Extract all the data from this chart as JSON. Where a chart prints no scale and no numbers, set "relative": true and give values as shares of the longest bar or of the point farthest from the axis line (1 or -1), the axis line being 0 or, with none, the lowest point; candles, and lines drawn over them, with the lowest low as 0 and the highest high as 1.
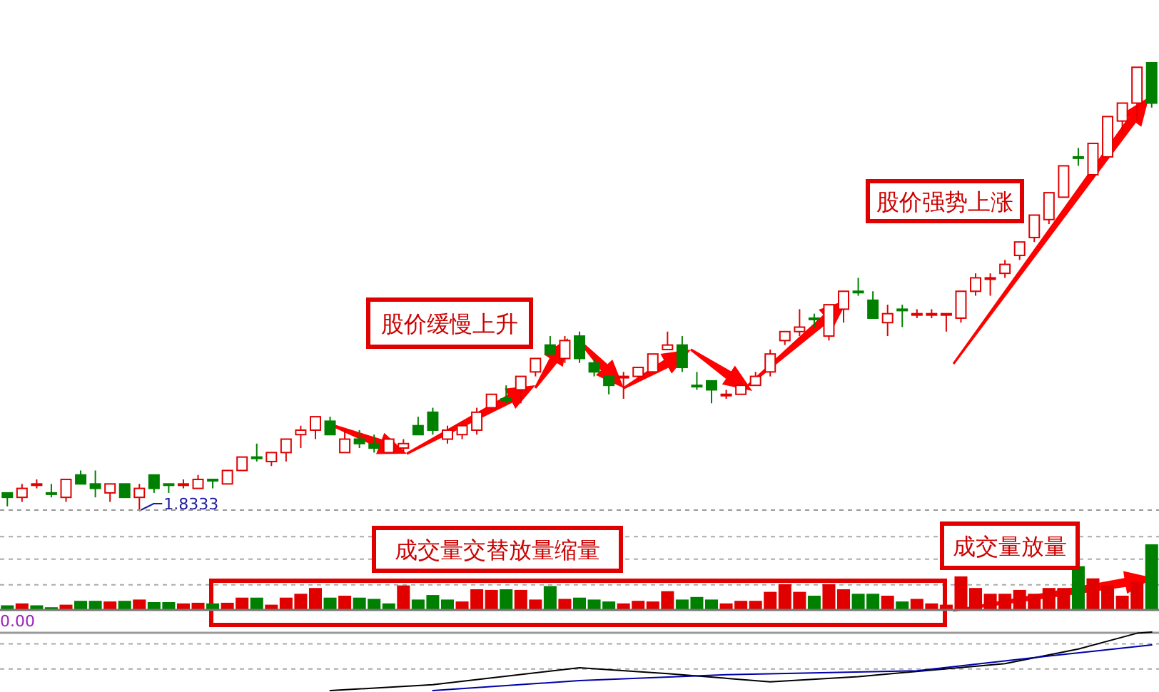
{
  "chart_data": [
    {
      "type": "candlestick",
      "relative": true,
      "categories": [
        null,
        null,
        null,
        null,
        null,
        null,
        null,
        null,
        null,
        null,
        null,
        null,
        null,
        null,
        null,
        null,
        null,
        null,
        null,
        null,
        null,
        null,
        null,
        null,
        null,
        null,
        null,
        null,
        null,
        null,
        null,
        null,
        null,
        null,
        null,
        null,
        null,
        null,
        null,
        null,
        null,
        null,
        null,
        null,
        null,
        null,
        null,
        null,
        null,
        null,
        null,
        null,
        null,
        null,
        null,
        null,
        null,
        null,
        null,
        null,
        null,
        null,
        null,
        null,
        null,
        null,
        null,
        null,
        null,
        null,
        null,
        null,
        null,
        null,
        null,
        null,
        null,
        null,
        null
      ],
      "ohlc": [
        [
          0.04,
          0.04,
          0.01,
          0.03
        ],
        [
          0.03,
          0.06,
          0.02,
          0.05
        ],
        [
          0.06,
          0.07,
          0.05,
          0.06
        ],
        [
          0.04,
          0.06,
          0.03,
          0.037
        ],
        [
          0.03,
          0.07,
          0.02,
          0.07
        ],
        [
          0.08,
          0.09,
          0.06,
          0.06
        ],
        [
          0.06,
          0.09,
          0.03,
          0.05
        ],
        [
          0.04,
          0.06,
          0.02,
          0.06
        ],
        [
          0.06,
          0.06,
          0.03,
          0.03
        ],
        [
          0.03,
          0.06,
          0,
          0.05
        ],
        [
          0.08,
          0.08,
          0.04,
          0.05
        ],
        [
          0.06,
          0.06,
          0.04,
          0.057
        ],
        [
          0.06,
          0.07,
          0.05,
          0.06
        ],
        [
          0.05,
          0.08,
          0.05,
          0.07
        ],
        [
          0.07,
          0.07,
          0.05,
          0.067
        ],
        [
          0.06,
          0.09,
          0.06,
          0.09
        ],
        [
          0.09,
          0.12,
          0.09,
          0.12
        ],
        [
          0.12,
          0.15,
          0.11,
          0.117
        ],
        [
          0.11,
          0.13,
          0.1,
          0.13
        ],
        [
          0.13,
          0.16,
          0.11,
          0.16
        ],
        [
          0.17,
          0.19,
          0.14,
          0.18
        ],
        [
          0.18,
          0.21,
          0.16,
          0.21
        ],
        [
          0.2,
          0.21,
          0.17,
          0.17
        ],
        [
          0.13,
          0.18,
          0.13,
          0.16
        ],
        [
          0.16,
          0.18,
          0.14,
          0.15
        ],
        [
          0.15,
          0.17,
          0.13,
          0.14
        ],
        [
          0.13,
          0.16,
          0.13,
          0.16
        ],
        [
          0.14,
          0.16,
          0.13,
          0.15
        ],
        [
          0.19,
          0.21,
          0.17,
          0.17
        ],
        [
          0.22,
          0.23,
          0.17,
          0.18
        ],
        [
          0.16,
          0.19,
          0.15,
          0.18
        ],
        [
          0.17,
          0.2,
          0.16,
          0.19
        ],
        [
          0.18,
          0.23,
          0.17,
          0.22
        ],
        [
          0.23,
          0.26,
          0.22,
          0.26
        ],
        [
          0.25,
          0.28,
          0.24,
          0.247
        ],
        [
          0.27,
          0.3,
          0.24,
          0.3
        ],
        [
          0.31,
          0.34,
          0.3,
          0.34
        ],
        [
          0.37,
          0.39,
          0.35,
          0.35
        ],
        [
          0.34,
          0.39,
          0.33,
          0.38
        ],
        [
          0.39,
          0.4,
          0.33,
          0.34
        ],
        [
          0.33,
          0.34,
          0.3,
          0.31
        ],
        [
          0.3,
          0.3,
          0.26,
          0.28
        ],
        [
          0.3,
          0.31,
          0.25,
          0.3
        ],
        [
          0.3,
          0.32,
          0.29,
          0.32
        ],
        [
          0.31,
          0.35,
          0.31,
          0.35
        ],
        [
          0.36,
          0.4,
          0.36,
          0.37
        ],
        [
          0.37,
          0.39,
          0.31,
          0.32
        ],
        [
          0.28,
          0.31,
          0.27,
          0.277
        ],
        [
          0.29,
          0.29,
          0.24,
          0.27
        ],
        [
          0.26,
          0.27,
          0.25,
          0.26
        ],
        [
          0.26,
          0.29,
          0.26,
          0.28
        ],
        [
          0.28,
          0.31,
          0.28,
          0.3
        ],
        [
          0.31,
          0.36,
          0.3,
          0.35
        ],
        [
          0.38,
          0.4,
          0.37,
          0.4
        ],
        [
          0.4,
          0.45,
          0.39,
          0.41
        ],
        [
          0.43,
          0.44,
          0.41,
          0.427
        ],
        [
          0.39,
          0.46,
          0.38,
          0.46
        ],
        [
          0.45,
          0.49,
          0.42,
          0.49
        ],
        [
          0.49,
          0.52,
          0.48,
          0.487
        ],
        [
          0.47,
          0.49,
          0.43,
          0.43
        ],
        [
          0.42,
          0.46,
          0.39,
          0.44
        ],
        [
          0.45,
          0.46,
          0.41,
          0.447
        ],
        [
          0.44,
          0.45,
          0.43,
          0.44
        ],
        [
          0.44,
          0.45,
          0.43,
          0.44
        ],
        [
          0.44,
          0.44,
          0.4,
          0.44
        ],
        [
          0.43,
          0.49,
          0.42,
          0.49
        ],
        [
          0.49,
          0.53,
          0.48,
          0.52
        ],
        [
          0.52,
          0.53,
          0.48,
          0.52
        ],
        [
          0.53,
          0.56,
          0.52,
          0.55
        ],
        [
          0.57,
          0.6,
          0.56,
          0.6
        ],
        [
          0.61,
          0.66,
          0.6,
          0.66
        ],
        [
          0.65,
          0.71,
          0.64,
          0.71
        ],
        [
          0.7,
          0.77,
          0.7,
          0.77
        ],
        [
          0.79,
          0.81,
          0.77,
          0.787
        ],
        [
          0.75,
          0.82,
          0.74,
          0.82
        ],
        [
          0.79,
          0.88,
          0.79,
          0.88
        ],
        [
          0.87,
          0.91,
          0.84,
          0.91
        ],
        [
          0.91,
          0.99,
          0.87,
          0.99
        ],
        [
          1,
          1,
          0.9,
          0.91
        ]
      ],
      "colors": [
        "#008000",
        "#e00000",
        "#e00000",
        "#008000",
        "#e00000",
        "#008000",
        "#008000",
        "#e00000",
        "#008000",
        "#e00000",
        "#008000",
        "#008000",
        "#e00000",
        "#e00000",
        "#008000",
        "#e00000",
        "#e00000",
        "#008000",
        "#e00000",
        "#e00000",
        "#e00000",
        "#e00000",
        "#008000",
        "#e00000",
        "#008000",
        "#008000",
        "#e00000",
        "#e00000",
        "#008000",
        "#008000",
        "#e00000",
        "#e00000",
        "#e00000",
        "#e00000",
        "#008000",
        "#e00000",
        "#e00000",
        "#008000",
        "#e00000",
        "#008000",
        "#008000",
        "#008000",
        "#e00000",
        "#e00000",
        "#e00000",
        "#e00000",
        "#008000",
        "#008000",
        "#008000",
        "#e00000",
        "#e00000",
        "#e00000",
        "#e00000",
        "#e00000",
        "#e00000",
        "#008000",
        "#e00000",
        "#e00000",
        "#008000",
        "#008000",
        "#e00000",
        "#008000",
        "#e00000",
        "#e00000",
        "#e00000",
        "#e00000",
        "#e00000",
        "#e00000",
        "#e00000",
        "#e00000",
        "#e00000",
        "#e00000",
        "#e00000",
        "#008000",
        "#e00000",
        "#e00000",
        "#e00000",
        "#e00000",
        "#008000"
      ],
      "annotations": [
        "1.8333",
        "股价缓慢上升",
        "股价强势上涨"
      ]
    },
    {
      "type": "bar",
      "relative": true,
      "ref_lines": [
        {
          "axis": "y",
          "value": 1.13,
          "color": "#aaaaaa",
          "line_style": "dashed"
        },
        {
          "axis": "y",
          "value": 0.78,
          "color": "#aaaaaa",
          "line_style": "dashed"
        },
        {
          "axis": "y",
          "value": 0.38,
          "color": "#aaaaaa",
          "line_style": "dashed"
        }
      ],
      "categories": [
        null,
        null,
        null,
        null,
        null,
        null,
        null,
        null,
        null,
        null,
        null,
        null,
        null,
        null,
        null,
        null,
        null,
        null,
        null,
        null,
        null,
        null,
        null,
        null,
        null,
        null,
        null,
        null,
        null,
        null,
        null,
        null,
        null,
        null,
        null,
        null,
        null,
        null,
        null,
        null,
        null,
        null,
        null,
        null,
        null,
        null,
        null,
        null,
        null,
        null,
        null,
        null,
        null,
        null,
        null,
        null,
        null,
        null,
        null,
        null,
        null,
        null,
        null,
        null,
        null,
        null,
        null,
        null,
        null,
        null,
        null,
        null,
        null,
        null,
        null,
        null,
        null,
        null,
        null
      ],
      "values": [
        0.05,
        0.08,
        0.05,
        0.02,
        0.06,
        0.12,
        0.12,
        0.11,
        0.12,
        0.14,
        0.1,
        0.1,
        0.08,
        0.09,
        0.08,
        0.09,
        0.17,
        0.17,
        0.06,
        0.17,
        0.23,
        0.32,
        0.17,
        0.2,
        0.17,
        0.15,
        0.08,
        0.36,
        0.14,
        0.21,
        0.14,
        0.11,
        0.3,
        0.29,
        0.3,
        0.29,
        0.14,
        0.35,
        0.15,
        0.17,
        0.14,
        0.11,
        0.08,
        0.12,
        0.11,
        0.27,
        0.14,
        0.18,
        0.14,
        0.08,
        0.12,
        0.12,
        0.26,
        0.38,
        0.26,
        0.2,
        0.38,
        0.3,
        0.23,
        0.23,
        0.2,
        0.11,
        0.15,
        0.08,
        0.06,
        0.5,
        0.32,
        0.23,
        0.23,
        0.29,
        0.23,
        0.32,
        0.32,
        0.66,
        0.47,
        0.36,
        0.2,
        0.42,
        1
      ],
      "colors": [
        "#008000",
        "#e00000",
        "#008000",
        "#008000",
        "#e00000",
        "#008000",
        "#008000",
        "#e00000",
        "#008000",
        "#e00000",
        "#008000",
        "#008000",
        "#e00000",
        "#e00000",
        "#008000",
        "#e00000",
        "#e00000",
        "#008000",
        "#e00000",
        "#e00000",
        "#e00000",
        "#e00000",
        "#008000",
        "#e00000",
        "#008000",
        "#008000",
        "#008000",
        "#e00000",
        "#008000",
        "#008000",
        "#008000",
        "#e00000",
        "#e00000",
        "#e00000",
        "#008000",
        "#e00000",
        "#e00000",
        "#008000",
        "#e00000",
        "#008000",
        "#008000",
        "#008000",
        "#e00000",
        "#e00000",
        "#e00000",
        "#e00000",
        "#008000",
        "#008000",
        "#008000",
        "#e00000",
        "#e00000",
        "#e00000",
        "#e00000",
        "#e00000",
        "#e00000",
        "#008000",
        "#e00000",
        "#e00000",
        "#008000",
        "#008000",
        "#e00000",
        "#008000",
        "#e00000",
        "#e00000",
        "#e00000",
        "#e00000",
        "#e00000",
        "#e00000",
        "#e00000",
        "#e00000",
        "#e00000",
        "#e00000",
        "#e00000",
        "#008000",
        "#e00000",
        "#e00000",
        "#e00000",
        "#e00000",
        "#008000"
      ],
      "annotations": [
        "0.00",
        "成交量交替放量缩量",
        "成交量放量"
      ]
    },
    {
      "type": "line",
      "relative": true,
      "ref_lines": [
        {
          "axis": "y",
          "value": 0.8,
          "color": "#aaaaaa",
          "line_style": "dashed"
        },
        {
          "axis": "y",
          "value": 0.37,
          "color": "#aaaaaa",
          "line_style": "dashed"
        }
      ],
      "categories": [
        null,
        null,
        null,
        null,
        null,
        null,
        null,
        null,
        null,
        null,
        null,
        null,
        null,
        null,
        null,
        null,
        null,
        null,
        null,
        null,
        null,
        null,
        null,
        null,
        null,
        null,
        null,
        null,
        null,
        null,
        null,
        null,
        null,
        null,
        null,
        null,
        null,
        null,
        null,
        null,
        null,
        null,
        null,
        null,
        null,
        null,
        null,
        null,
        null,
        null,
        null,
        null,
        null,
        null,
        null,
        null,
        null,
        null,
        null,
        null,
        null,
        null,
        null,
        null,
        null,
        null,
        null,
        null,
        null,
        null,
        null,
        null,
        null,
        null,
        null,
        null,
        null,
        null,
        null
      ],
      "series": [
        {
          "color": "#000000",
          "values": [
            null,
            null,
            null,
            null,
            null,
            null,
            null,
            null,
            null,
            null,
            null,
            null,
            null,
            null,
            null,
            null,
            null,
            null,
            null,
            null,
            null,
            null,
            0,
            null,
            null,
            null,
            null,
            null,
            null,
            0.1,
            null,
            null,
            null,
            null,
            null,
            null,
            null,
            null,
            null,
            0.39,
            null,
            null,
            null,
            null,
            null,
            0.29,
            null,
            null,
            null,
            null,
            null,
            null,
            0.15,
            null,
            null,
            null,
            null,
            null,
            0.24,
            null,
            null,
            null,
            null,
            null,
            null,
            null,
            null,
            null,
            0.46,
            null,
            null,
            null,
            null,
            0.71,
            null,
            null,
            null,
            0.98,
            1
          ]
        },
        {
          "color": "#0000aa",
          "values": [
            null,
            null,
            null,
            null,
            null,
            null,
            null,
            null,
            null,
            null,
            null,
            null,
            null,
            null,
            null,
            null,
            null,
            null,
            null,
            null,
            null,
            null,
            null,
            null,
            null,
            null,
            null,
            null,
            null,
            0,
            null,
            null,
            null,
            null,
            null,
            null,
            null,
            null,
            null,
            0.17,
            null,
            null,
            null,
            null,
            null,
            null,
            null,
            null,
            null,
            0.27,
            null,
            null,
            null,
            null,
            null,
            null,
            null,
            null,
            null,
            null,
            null,
            null,
            0.34,
            null,
            null,
            null,
            null,
            null,
            null,
            null,
            null,
            0.59,
            null,
            null,
            null,
            null,
            null,
            null,
            0.78
          ]
        }
      ]
    }
  ]
}
